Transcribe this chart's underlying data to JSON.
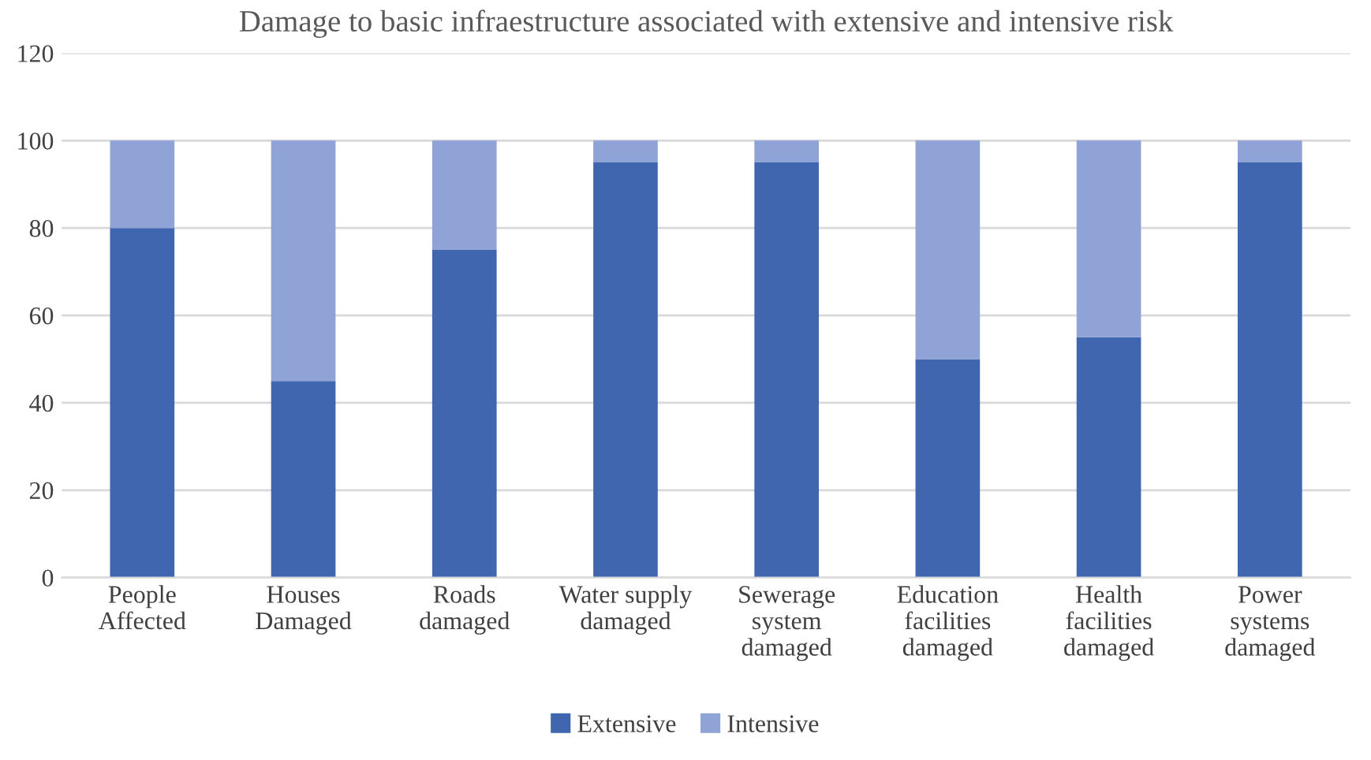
{
  "chart_data": {
    "type": "bar",
    "title": "Damage to basic infraestructure associated with extensive and intensive risk",
    "categories": [
      "People\nAffected",
      "Houses\nDamaged",
      "Roads\ndamaged",
      "Water supply\ndamaged",
      "Sewerage\nsystem\ndamaged",
      "Education\nfacilities\ndamaged",
      "Health\nfacilities\ndamaged",
      "Power\nsystems\ndamaged"
    ],
    "series": [
      {
        "name": "Extensive",
        "color": "#4066b0",
        "values": [
          80,
          45,
          75,
          95,
          95,
          50,
          55,
          95
        ]
      },
      {
        "name": "Intensive",
        "color": "#8fa3d6",
        "values": [
          20,
          55,
          25,
          5,
          5,
          50,
          45,
          5
        ]
      }
    ],
    "stacked": true,
    "ylim": [
      0,
      120
    ],
    "yticks": [
      0,
      20,
      40,
      60,
      80,
      100,
      120
    ],
    "grid": "y",
    "legend": "bottom"
  }
}
